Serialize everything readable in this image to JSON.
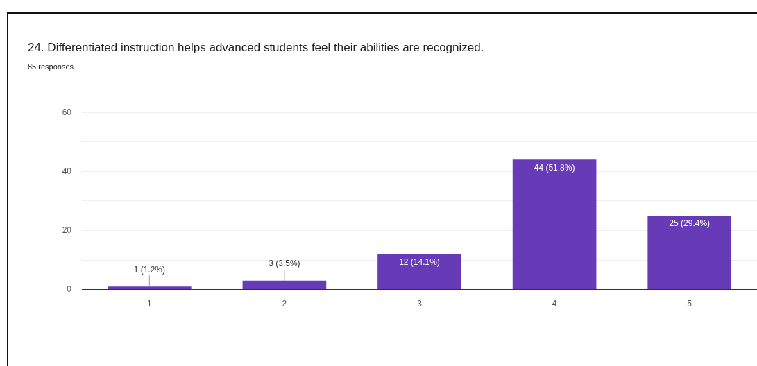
{
  "chart_data": {
    "type": "bar",
    "title": "24.  Differentiated instruction helps advanced students feel their abilities are recognized.",
    "subtitle": "85 responses",
    "categories": [
      "1",
      "2",
      "3",
      "4",
      "5"
    ],
    "values": [
      1,
      3,
      12,
      44,
      25
    ],
    "value_labels": [
      "1 (1.2%)",
      "3 (3.5%)",
      "12 (14.1%)",
      "44 (51.8%)",
      "25 (29.4%)"
    ],
    "color": "#673ab7",
    "ylim": [
      0,
      60
    ],
    "yticks": [
      0,
      {
        "value": 10,
        "label": null
      },
      20,
      {
        "value": 30,
        "label": null
      },
      40,
      {
        "value": 50,
        "label": null
      },
      60
    ],
    "grid": "y",
    "legend": false
  }
}
